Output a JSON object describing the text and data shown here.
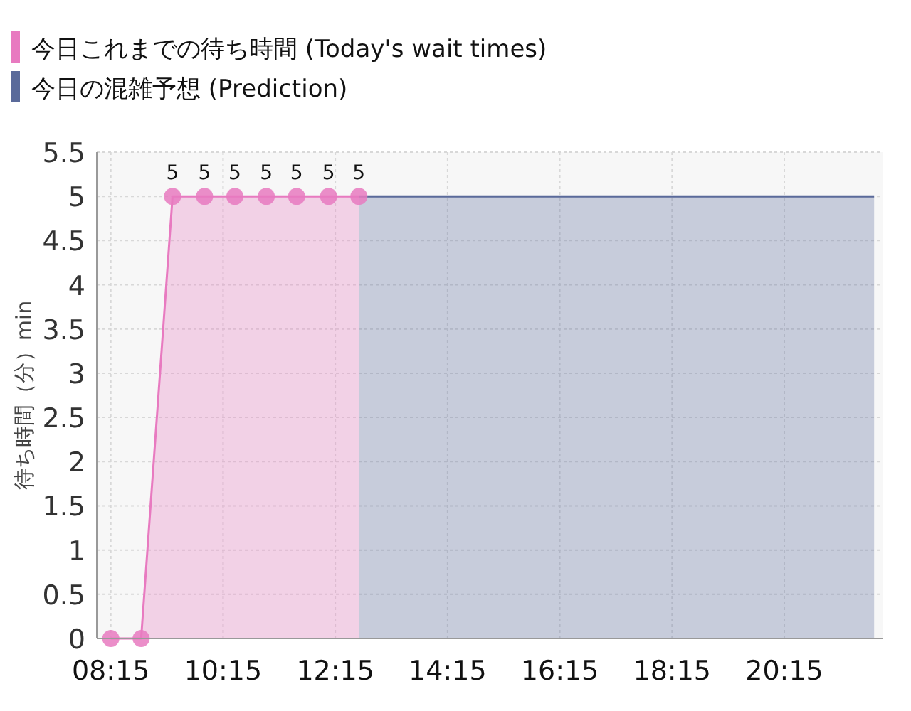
{
  "chart_data": {
    "type": "area",
    "ylabel": "待ち時間（分）min",
    "xlim": [
      8,
      22
    ],
    "ylim": [
      0,
      5.5
    ],
    "xticks": [
      {
        "value": 8.25,
        "label": "08:15"
      },
      {
        "value": 10.25,
        "label": "10:15"
      },
      {
        "value": 12.25,
        "label": "12:15"
      },
      {
        "value": 14.25,
        "label": "14:15"
      },
      {
        "value": 16.25,
        "label": "16:15"
      },
      {
        "value": 18.25,
        "label": "18:15"
      },
      {
        "value": 20.25,
        "label": "20:15"
      }
    ],
    "yticks": [
      0,
      0.5,
      1,
      1.5,
      2,
      2.5,
      3,
      3.5,
      4,
      4.5,
      5,
      5.5
    ],
    "grid": true,
    "legend": "top left",
    "series": [
      {
        "name": "今日これまでの待ち時間 (Today's wait times)",
        "color": "#e87ac0",
        "marker": "circle",
        "x": [
          8.25,
          8.79,
          9.35,
          9.92,
          10.46,
          11.02,
          11.56,
          12.13,
          12.67
        ],
        "values": [
          0,
          0,
          5,
          5,
          5,
          5,
          5,
          5,
          5
        ],
        "value_labels": [
          null,
          null,
          "5",
          "5",
          "5",
          "5",
          "5",
          "5",
          "5"
        ]
      },
      {
        "name": "今日の混雑予想 (Prediction)",
        "color": "#5a6a9a",
        "marker": "none",
        "x": [
          12.67,
          21.85
        ],
        "values": [
          5,
          5
        ]
      }
    ]
  }
}
